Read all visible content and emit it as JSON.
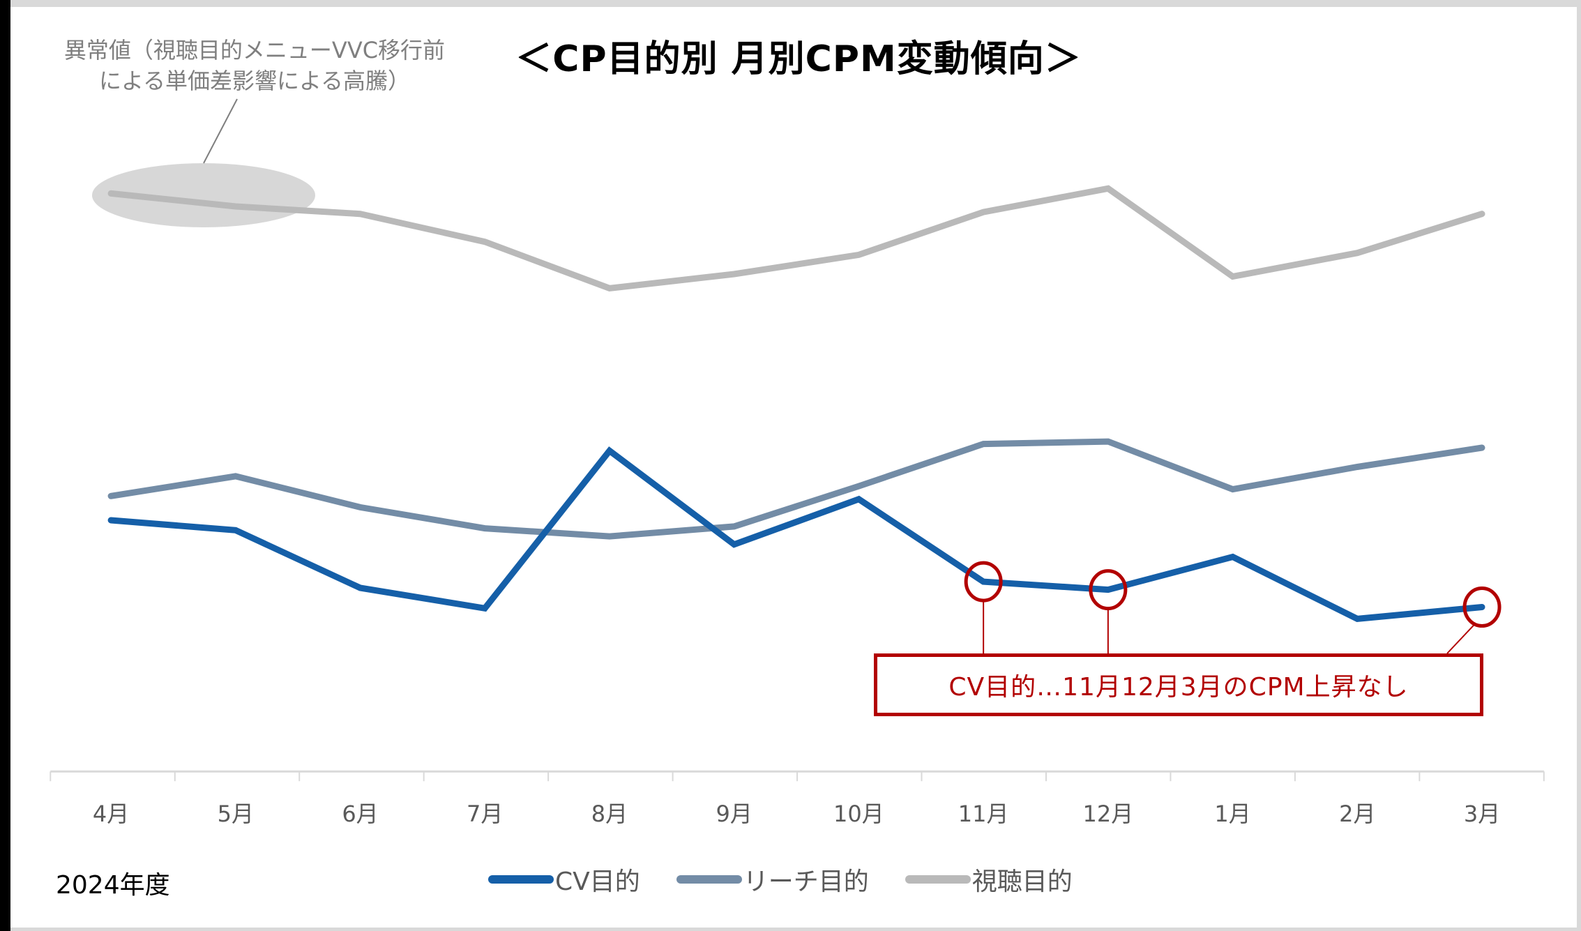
{
  "title": "＜CP目的別 月別CPM変動傾向＞",
  "annotation_note": {
    "line1": "異常値（視聴目的メニューVVC移行前",
    "line2": "による単価差影響による高騰）"
  },
  "callout": {
    "text": "CV目的…11月12月3月のCPM上昇なし",
    "highlighted_months": [
      "11月",
      "12月",
      "3月"
    ],
    "color": "#b20000"
  },
  "year_label": "2024年度",
  "legend": [
    {
      "label": "CV目的",
      "color": "#155fa8"
    },
    {
      "label": "リーチ目的",
      "color": "#738ca6"
    },
    {
      "label": "視聴目的",
      "color": "#b9b9b9"
    }
  ],
  "chart_data": {
    "type": "line",
    "title": "＜CP目的別 月別CPM変動傾向＞",
    "xlabel": "",
    "ylabel": "",
    "y_axis_visible": false,
    "value_note": "No y-axis shown; values are relative indices (0 = axis line) estimated from pixel positions",
    "grid": false,
    "legend_position": "bottom",
    "categories": [
      "4月",
      "5月",
      "6月",
      "7月",
      "8月",
      "9月",
      "10月",
      "11月",
      "12月",
      "1月",
      "2月",
      "3月"
    ],
    "series": [
      {
        "name": "CV目的",
        "color": "#155fa8",
        "values": [
          40.5,
          38.9,
          29.6,
          26.3,
          51.7,
          36.6,
          43.9,
          30.6,
          29.3,
          34.6,
          24.6,
          26.5
        ]
      },
      {
        "name": "リーチ目的",
        "color": "#738ca6",
        "values": [
          44.4,
          47.6,
          42.6,
          39.2,
          37.9,
          39.5,
          46.0,
          52.8,
          53.2,
          45.5,
          49.1,
          52.2
        ]
      },
      {
        "name": "視聴目的",
        "color": "#b9b9b9",
        "values": [
          93.2,
          91.1,
          89.9,
          85.4,
          77.9,
          80.2,
          83.3,
          90.2,
          94.0,
          79.8,
          83.6,
          89.9
        ]
      }
    ],
    "annotations": [
      {
        "text": "異常値（視聴目的メニューVVC移行前による単価差影響による高騰）",
        "target_series": "視聴目的",
        "target_categories": [
          "4月",
          "5月"
        ]
      },
      {
        "text": "CV目的…11月12月3月のCPM上昇なし",
        "target_series": "CV目的",
        "target_categories": [
          "11月",
          "12月",
          "3月"
        ]
      }
    ]
  }
}
